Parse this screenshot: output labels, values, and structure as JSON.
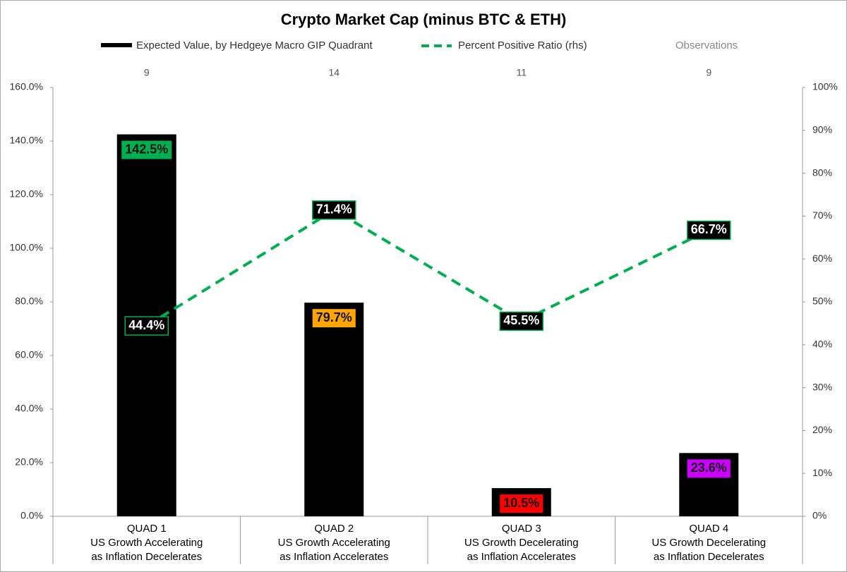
{
  "chart_data": {
    "type": "bar",
    "title": "Crypto Market Cap (minus BTC & ETH)",
    "categories": [
      [
        "QUAD 1",
        "US Growth Accelerating",
        "as Inflation Decelerates"
      ],
      [
        "QUAD 2",
        "US Growth Accelerating",
        "as Inflation Accelerates"
      ],
      [
        "QUAD 3",
        "US Growth Decelerating",
        "as Inflation Accelerates"
      ],
      [
        "QUAD 4",
        "US Growth Decelerating",
        "as Inflation Decelerates"
      ]
    ],
    "series": [
      {
        "name": "Expected Value, by Hedgeye Macro GIP Quadrant",
        "type": "bar",
        "color": "#000000",
        "values": [
          142.5,
          79.7,
          10.5,
          23.6
        ],
        "value_labels": [
          "142.5%",
          "79.7%",
          "10.5%",
          "23.6%"
        ],
        "label_colors": [
          "#00b050",
          "#ffa500",
          "#ff0000",
          "#cc00ff"
        ]
      },
      {
        "name": "Percent Positive Ratio (rhs)",
        "type": "line",
        "axis": "y2",
        "color": "#00b050",
        "dashed": true,
        "values": [
          44.4,
          71.4,
          45.5,
          66.7
        ],
        "value_labels": [
          "44.4%",
          "71.4%",
          "45.5%",
          "66.7%"
        ]
      }
    ],
    "observations": {
      "name": "Observations",
      "values": [
        9,
        14,
        11,
        9
      ]
    },
    "ylim": [
      0,
      160
    ],
    "yticks": [
      {
        "value": 0,
        "label": "0.0%"
      },
      {
        "value": 20,
        "label": "20.0%"
      },
      {
        "value": 40,
        "label": "40.0%"
      },
      {
        "value": 60,
        "label": "60.0%"
      },
      {
        "value": 80,
        "label": "80.0%"
      },
      {
        "value": 100,
        "label": "100.0%"
      },
      {
        "value": 120,
        "label": "120.0%"
      },
      {
        "value": 140,
        "label": "140.0%"
      },
      {
        "value": 160,
        "label": "160.0%"
      }
    ],
    "y2lim": [
      0,
      100
    ],
    "y2ticks": [
      {
        "value": 0,
        "label": "0%"
      },
      {
        "value": 10,
        "label": "10%"
      },
      {
        "value": 20,
        "label": "20%"
      },
      {
        "value": 30,
        "label": "30%"
      },
      {
        "value": 40,
        "label": "40%"
      },
      {
        "value": 50,
        "label": "50%"
      },
      {
        "value": 60,
        "label": "60%"
      },
      {
        "value": 70,
        "label": "70%"
      },
      {
        "value": 80,
        "label": "80%"
      },
      {
        "value": 90,
        "label": "90%"
      },
      {
        "value": 100,
        "label": "100%"
      }
    ],
    "grid": false
  }
}
